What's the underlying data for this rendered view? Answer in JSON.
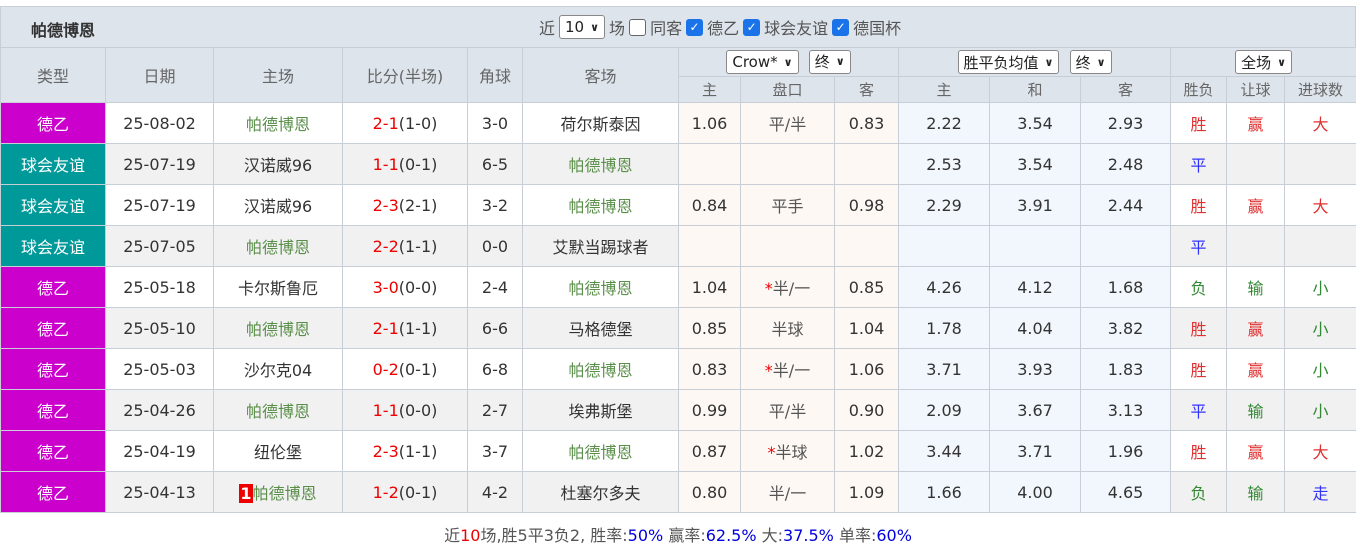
{
  "header": {
    "title": "帕德博恩",
    "filter_prefix": "近",
    "count": "10",
    "filter_suffix": "场",
    "same_label": "同客",
    "checkboxes": [
      {
        "label": "德乙",
        "checked": true
      },
      {
        "label": "球会友谊",
        "checked": true
      },
      {
        "label": "德国杯",
        "checked": true
      }
    ]
  },
  "columns": {
    "type": "类型",
    "date": "日期",
    "home": "主场",
    "score": "比分(半场)",
    "corner": "角球",
    "away": "客场",
    "company": "Crow*",
    "asian_stage": "终",
    "euro_type": "胜平负均值",
    "euro_stage": "终",
    "scope": "全场",
    "sub": [
      "主",
      "盘口",
      "客",
      "主",
      "和",
      "客",
      "胜负",
      "让球",
      "进球数"
    ]
  },
  "colors": {
    "league_de2": "#cc00cc",
    "league_friendly": "#009999",
    "win": "#e03030",
    "draw": "#3333ff",
    "loss": "#338833"
  },
  "rows": [
    {
      "type": "德乙",
      "date": "25-08-02",
      "home": "帕德博恩",
      "home_ours": true,
      "ft": "2-1",
      "ht": "(1-0)",
      "corner": "3-0",
      "away": "荷尔斯泰因",
      "away_ours": false,
      "ah": "1.06",
      "line": "平/半",
      "aa": "0.83",
      "eh": "2.22",
      "ed": "3.54",
      "ea": "2.93",
      "res": "胜",
      "hc": "赢",
      "ou": "大"
    },
    {
      "type": "球会友谊",
      "date": "25-07-19",
      "home": "汉诺威96",
      "home_ours": false,
      "ft": "1-1",
      "ht": "(0-1)",
      "corner": "6-5",
      "away": "帕德博恩",
      "away_ours": true,
      "ah": "",
      "line": "",
      "aa": "",
      "eh": "2.53",
      "ed": "3.54",
      "ea": "2.48",
      "res": "平",
      "hc": "",
      "ou": ""
    },
    {
      "type": "球会友谊",
      "date": "25-07-19",
      "home": "汉诺威96",
      "home_ours": false,
      "ft": "2-3",
      "ht": "(2-1)",
      "corner": "3-2",
      "away": "帕德博恩",
      "away_ours": true,
      "ah": "0.84",
      "line": "平手",
      "aa": "0.98",
      "eh": "2.29",
      "ed": "3.91",
      "ea": "2.44",
      "res": "胜",
      "hc": "赢",
      "ou": "大"
    },
    {
      "type": "球会友谊",
      "date": "25-07-05",
      "home": "帕德博恩",
      "home_ours": true,
      "ft": "2-2",
      "ht": "(1-1)",
      "corner": "0-0",
      "away": "艾默当踢球者",
      "away_ours": false,
      "ah": "",
      "line": "",
      "aa": "",
      "eh": "",
      "ed": "",
      "ea": "",
      "res": "平",
      "hc": "",
      "ou": ""
    },
    {
      "type": "德乙",
      "date": "25-05-18",
      "home": "卡尔斯鲁厄",
      "home_ours": false,
      "ft": "3-0",
      "ht": "(0-0)",
      "corner": "2-4",
      "away": "帕德博恩",
      "away_ours": true,
      "ah": "1.04",
      "line_mark": "*",
      "line": "半/一",
      "aa": "0.85",
      "eh": "4.26",
      "ed": "4.12",
      "ea": "1.68",
      "res": "负",
      "hc": "输",
      "ou": "小"
    },
    {
      "type": "德乙",
      "date": "25-05-10",
      "home": "帕德博恩",
      "home_ours": true,
      "ft": "2-1",
      "ht": "(1-1)",
      "corner": "6-6",
      "away": "马格德堡",
      "away_ours": false,
      "ah": "0.85",
      "line": "半球",
      "aa": "1.04",
      "eh": "1.78",
      "ed": "4.04",
      "ea": "3.82",
      "res": "胜",
      "hc": "赢",
      "ou": "小"
    },
    {
      "type": "德乙",
      "date": "25-05-03",
      "home": "沙尔克04",
      "home_ours": false,
      "ft": "0-2",
      "ht": "(0-1)",
      "corner": "6-8",
      "away": "帕德博恩",
      "away_ours": true,
      "ah": "0.83",
      "line_mark": "*",
      "line": "半/一",
      "aa": "1.06",
      "eh": "3.71",
      "ed": "3.93",
      "ea": "1.83",
      "res": "胜",
      "hc": "赢",
      "ou": "小"
    },
    {
      "type": "德乙",
      "date": "25-04-26",
      "home": "帕德博恩",
      "home_ours": true,
      "ft": "1-1",
      "ht": "(0-0)",
      "corner": "2-7",
      "away": "埃弗斯堡",
      "away_ours": false,
      "ah": "0.99",
      "line": "平/半",
      "aa": "0.90",
      "eh": "2.09",
      "ed": "3.67",
      "ea": "3.13",
      "res": "平",
      "hc": "输",
      "ou": "小"
    },
    {
      "type": "德乙",
      "date": "25-04-19",
      "home": "纽伦堡",
      "home_ours": false,
      "ft": "2-3",
      "ht": "(1-1)",
      "corner": "3-7",
      "away": "帕德博恩",
      "away_ours": true,
      "ah": "0.87",
      "line_mark": "*",
      "line": "半球",
      "aa": "1.02",
      "eh": "3.44",
      "ed": "3.71",
      "ea": "1.96",
      "res": "胜",
      "hc": "赢",
      "ou": "大"
    },
    {
      "type": "德乙",
      "date": "25-04-13",
      "home_rank": "1",
      "home": "帕德博恩",
      "home_ours": true,
      "ft": "1-2",
      "ht": "(0-1)",
      "corner": "4-2",
      "away": "杜塞尔多夫",
      "away_ours": false,
      "ah": "0.80",
      "line": "半/一",
      "aa": "1.09",
      "eh": "1.66",
      "ed": "4.00",
      "ea": "4.65",
      "res": "负",
      "hc": "输",
      "ou": "走"
    }
  ],
  "footer": {
    "t1": "近",
    "n": "10",
    "t2": "场,胜5平3负2, 胜率:",
    "win_rate": "50%",
    "t3": " 赢率:",
    "hc_rate": "62.5%",
    "t4": " 大:",
    "over_rate": "37.5%",
    "t5": " 单率:",
    "odd_rate": "60%"
  }
}
